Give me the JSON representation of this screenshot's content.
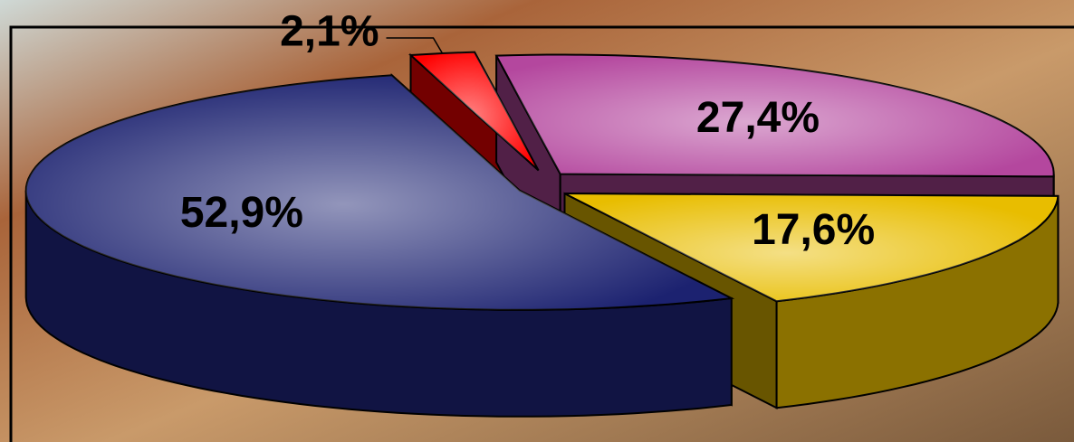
{
  "chart_data": {
    "type": "pie3d",
    "values": [
      52.9,
      2.1,
      27.4,
      17.6
    ],
    "value_labels": [
      "52,9%",
      "2,1%",
      "27,4%",
      "17,6%"
    ],
    "colors": [
      "#1c2270",
      "#ff0000",
      "#b4479e",
      "#e8bd00"
    ]
  }
}
